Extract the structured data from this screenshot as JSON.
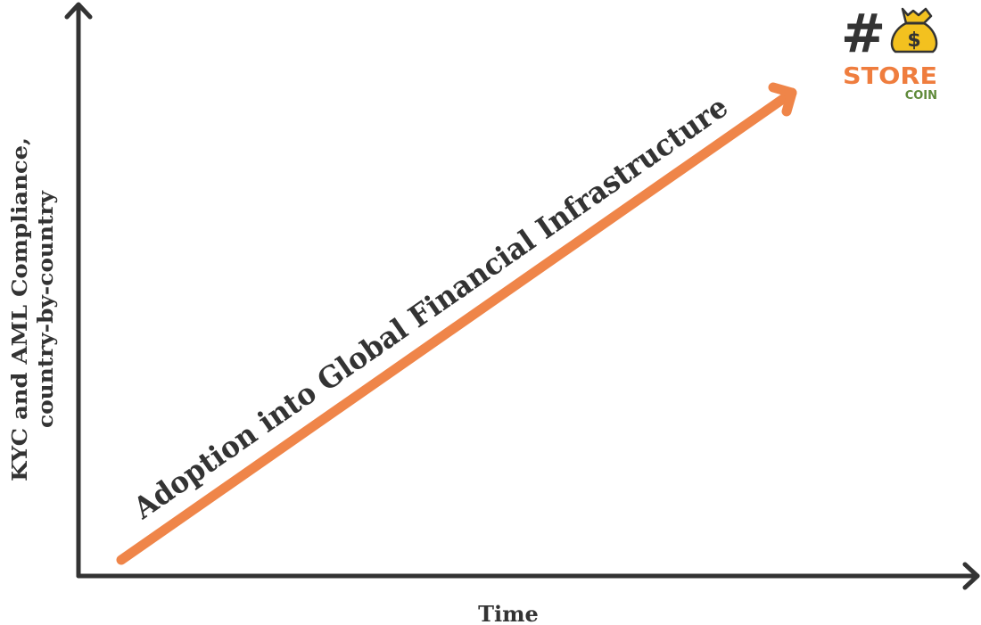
{
  "diagram": {
    "x_axis_label": "Time",
    "y_axis_label_line1": "KYC and AML Compliance,",
    "y_axis_label_line2": "country-by-country",
    "trend_label": "Adoption into Global Financial Infrastructure"
  },
  "logo": {
    "hash": "#",
    "dollar": "$",
    "word1": "STORE",
    "word2": "COIN"
  },
  "colors": {
    "axis": "#333333",
    "arrow": "#ef8549",
    "text": "#333333",
    "logo_orange": "#ef7d3e",
    "logo_green": "#5f8a3a",
    "bag_yellow": "#f3c11f"
  }
}
